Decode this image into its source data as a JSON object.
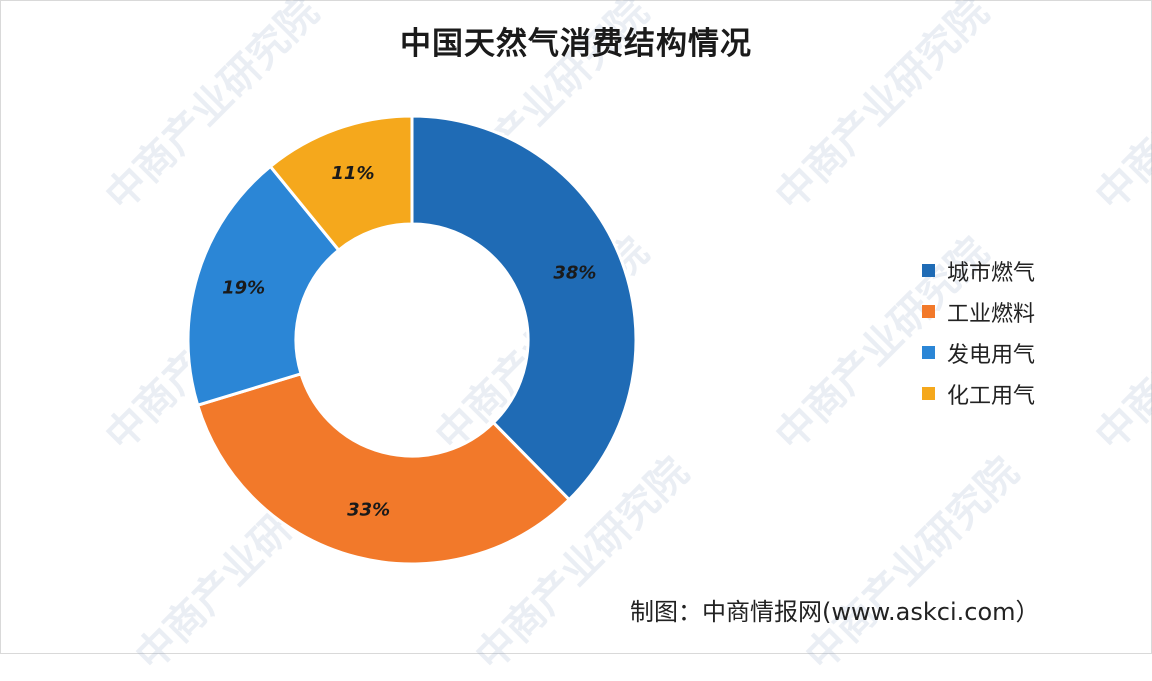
{
  "watermark_text": "中商产业研究院",
  "source_text": "制图：中商情报网(www.askci.com）",
  "chart_data": {
    "type": "pie",
    "title": "中国天然气消费结构情况",
    "style": "donut",
    "legend_position": "right",
    "categories": [
      "城市燃气",
      "工业燃料",
      "发电用气",
      "化工用气"
    ],
    "values": [
      38,
      33,
      19,
      11
    ],
    "labels": [
      "38%",
      "33%",
      "19%",
      "11%"
    ],
    "colors": [
      "#1f6bb5",
      "#f2792a",
      "#2b86d6",
      "#f5a81c"
    ]
  }
}
